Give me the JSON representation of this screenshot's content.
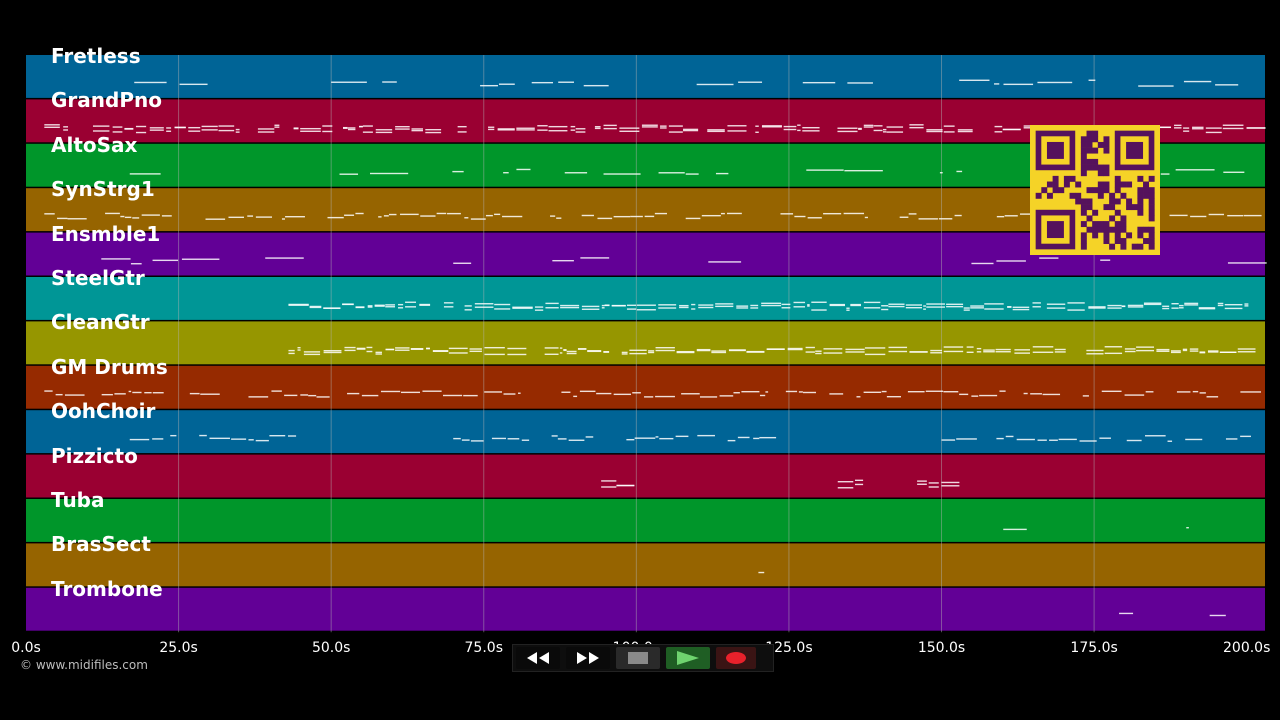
{
  "tracks": [
    {
      "name": "Fretless",
      "color": "#006496"
    },
    {
      "name": "GrandPno",
      "color": "#9a0032"
    },
    {
      "name": "AltoSax",
      "color": "#00962a"
    },
    {
      "name": "SynStrg1",
      "color": "#966400"
    },
    {
      "name": "Ensmble1",
      "color": "#620096"
    },
    {
      "name": "SteelGtr",
      "color": "#009696"
    },
    {
      "name": "CleanGtr",
      "color": "#969600"
    },
    {
      "name": "GM Drums",
      "color": "#962a00"
    },
    {
      "name": "OohChoir",
      "color": "#006496"
    },
    {
      "name": "Pizzicto",
      "color": "#9a0032"
    },
    {
      "name": "Tuba",
      "color": "#00962a"
    },
    {
      "name": "BrasSect",
      "color": "#966400"
    },
    {
      "name": "Trombone",
      "color": "#620096"
    }
  ],
  "timeline": {
    "unit": "s",
    "range": [
      0,
      203
    ],
    "ticks": [
      "0.0s",
      "25.0s",
      "50.0s",
      "75.0s",
      "100.0s",
      "125.0s",
      "150.0s",
      "175.0s",
      "200.0s"
    ]
  },
  "copyright": "© www.midifiles.com",
  "transport": {
    "rewind_icon": "rewind-icon",
    "forward_icon": "fast-forward-icon",
    "stop_icon": "stop-icon",
    "play_icon": "play-icon",
    "record_icon": "record-icon"
  },
  "colors": {
    "background": "#000000",
    "gridline": "#b4b4b4",
    "note": "#ffffff",
    "qr_background": "#f5d327",
    "qr_foreground": "#55125c"
  }
}
